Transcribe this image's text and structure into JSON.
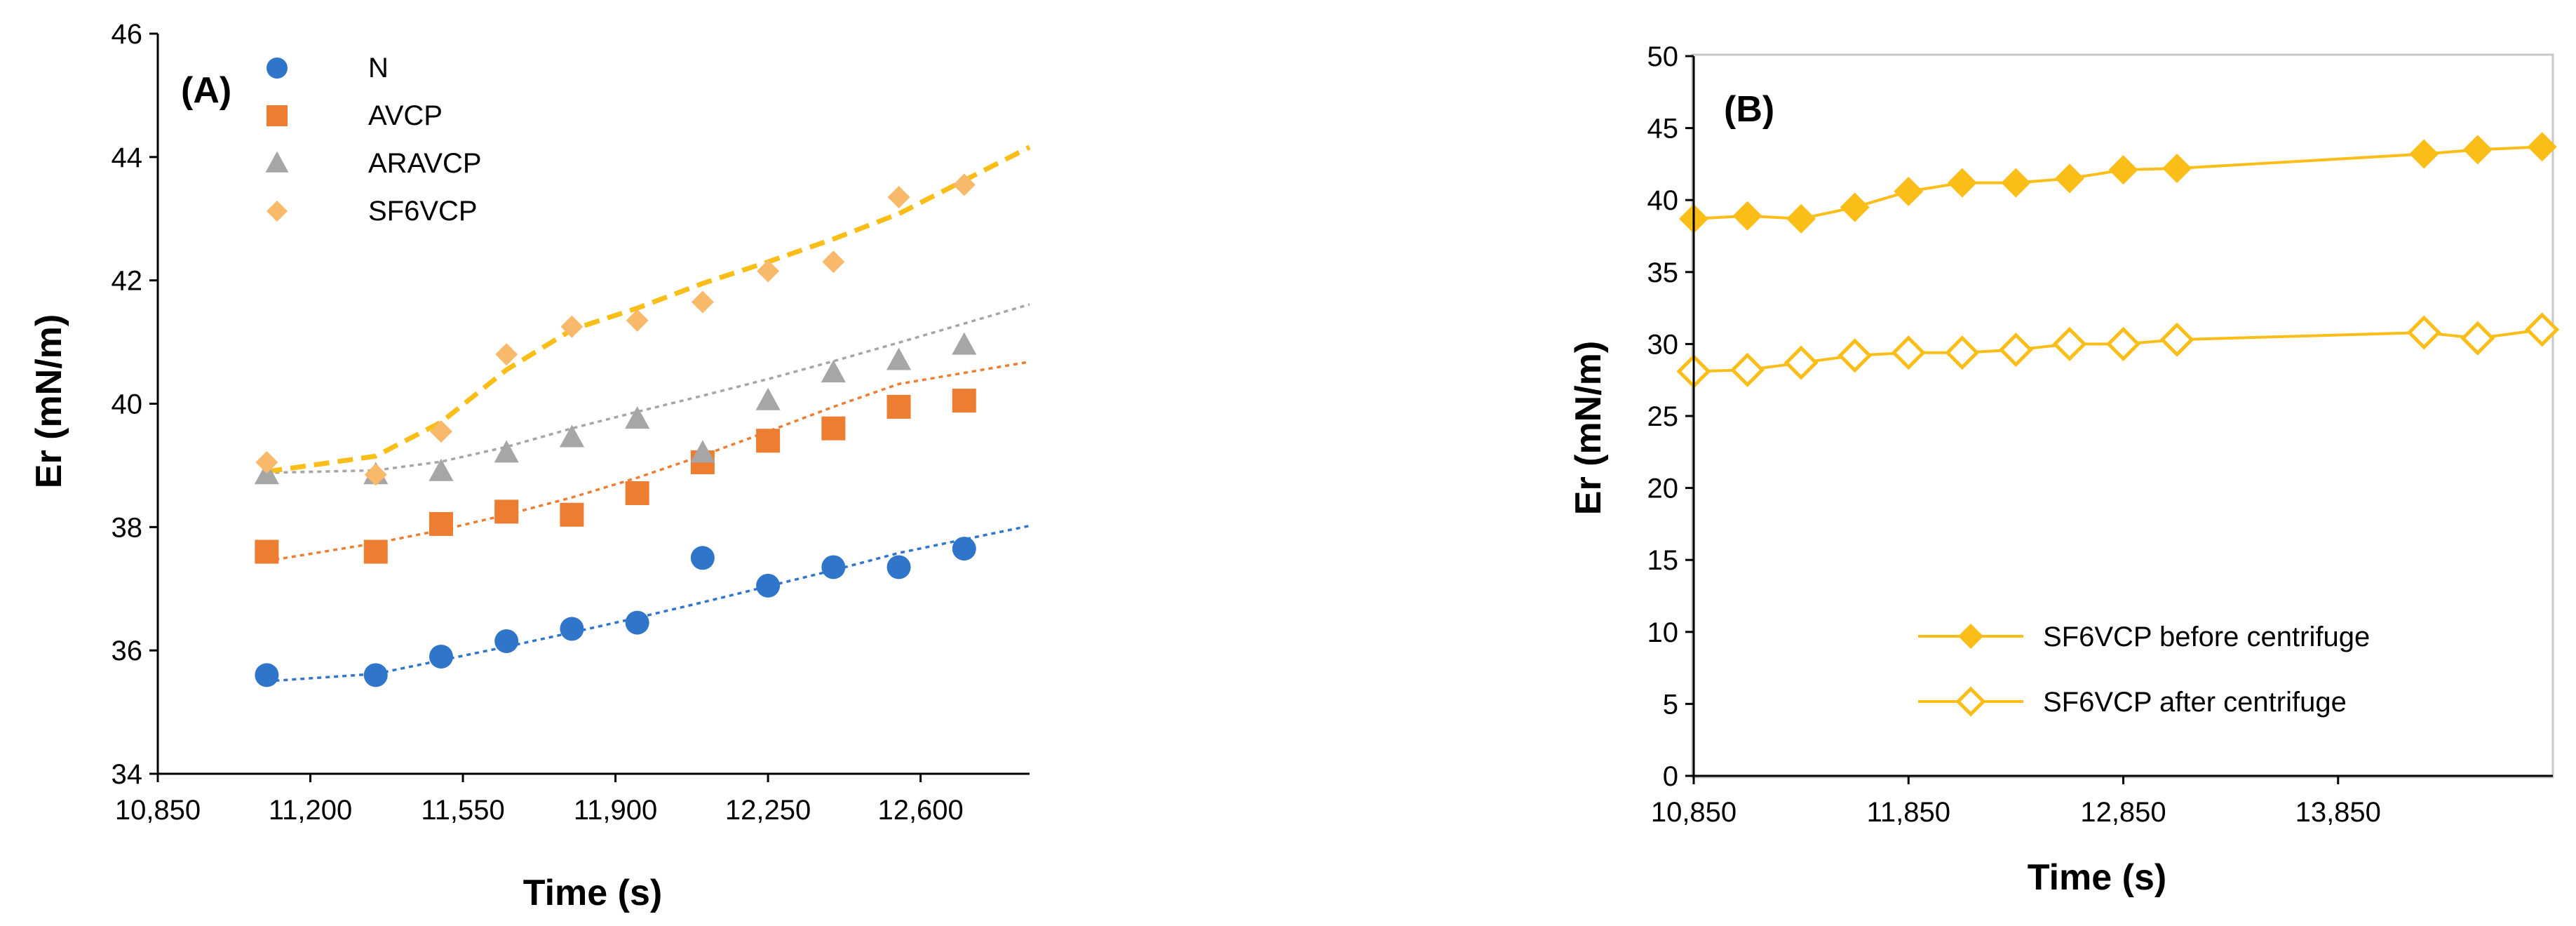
{
  "chart_data": [
    {
      "type": "scatter",
      "panel_label": "(A)",
      "xlabel": "Time (s)",
      "ylabel": "Er (mN/m)",
      "xlim": [
        10850,
        12850
      ],
      "ylim": [
        34,
        46
      ],
      "xticks": [
        10850,
        11200,
        11550,
        11900,
        12250,
        12600
      ],
      "xtick_labels": [
        "10,850",
        "11,200",
        "11,550",
        "11,900",
        "12,250",
        "12,600"
      ],
      "yticks": [
        34,
        36,
        38,
        40,
        42,
        44,
        46
      ],
      "ytick_labels": [
        "34",
        "36",
        "38",
        "40",
        "42",
        "44",
        "46"
      ],
      "grid": false,
      "legend_position": "top-left",
      "x": [
        11100,
        11350,
        11500,
        11650,
        11800,
        11950,
        12100,
        12250,
        12400,
        12550,
        12700
      ],
      "series": [
        {
          "name": "N",
          "marker": "circle",
          "color": "#2f75c9",
          "trend": "dotted",
          "values": [
            35.6,
            35.6,
            35.9,
            36.15,
            36.35,
            36.45,
            37.5,
            37.05,
            37.35,
            37.35,
            37.65
          ],
          "trend_values": [
            35.5,
            35.62,
            35.84,
            36.06,
            36.29,
            36.53,
            36.78,
            37.04,
            37.3,
            37.58,
            37.8
          ]
        },
        {
          "name": "AVCP",
          "marker": "square",
          "color": "#ed7d31",
          "trend": "dotted",
          "values": [
            37.6,
            37.6,
            38.05,
            38.25,
            38.2,
            38.55,
            39.05,
            39.4,
            39.6,
            39.95,
            40.05
          ],
          "trend_values": [
            37.45,
            37.74,
            37.95,
            38.2,
            38.48,
            38.8,
            39.16,
            39.55,
            39.95,
            40.32,
            40.5
          ]
        },
        {
          "name": "ARAVCP",
          "marker": "triangle",
          "color": "#a6a6a6",
          "trend": "dotted",
          "values": [
            38.85,
            38.85,
            38.9,
            39.2,
            39.45,
            39.75,
            39.2,
            40.05,
            40.5,
            40.7,
            40.95
          ],
          "trend_values": [
            38.88,
            38.92,
            39.06,
            39.3,
            39.6,
            39.87,
            40.13,
            40.4,
            40.69,
            40.99,
            41.3
          ]
        },
        {
          "name": "SF6VCP",
          "marker": "diamond",
          "color": "#f8b96b",
          "trend": "dashed",
          "trend_color": "#fbbd18",
          "values": [
            39.05,
            38.85,
            39.55,
            40.8,
            41.25,
            41.35,
            41.65,
            42.15,
            42.3,
            43.35,
            43.55
          ],
          "trend_values": [
            38.9,
            39.15,
            39.7,
            40.55,
            41.2,
            41.55,
            41.95,
            42.3,
            42.67,
            43.08,
            43.62
          ]
        }
      ]
    },
    {
      "type": "line",
      "panel_label": "(B)",
      "xlabel": "Time (s)",
      "ylabel": "Er (mN/m)",
      "xlim": [
        10850,
        14850
      ],
      "ylim": [
        0,
        50
      ],
      "xticks": [
        10850,
        11850,
        12850,
        13850
      ],
      "xtick_labels": [
        "10,850",
        "11,850",
        "12,850",
        "13,850"
      ],
      "yticks": [
        0,
        5,
        10,
        15,
        20,
        25,
        30,
        35,
        40,
        45,
        50
      ],
      "ytick_labels": [
        "0",
        "5",
        "10",
        "15",
        "20",
        "25",
        "30",
        "35",
        "40",
        "45",
        "50"
      ],
      "grid": false,
      "legend_position": "bottom-right",
      "x": [
        10850,
        11100,
        11350,
        11600,
        11850,
        12100,
        12350,
        12600,
        12850,
        13100,
        14250,
        14500,
        14800
      ],
      "series": [
        {
          "name": "SF6VCP before centrifuge",
          "marker": "diamond-filled",
          "color": "#fbbd18",
          "values": [
            38.7,
            38.9,
            38.7,
            39.5,
            40.6,
            41.2,
            41.2,
            41.5,
            42.1,
            42.2,
            43.2,
            43.5,
            43.7
          ]
        },
        {
          "name": "SF6VCP after centrifuge",
          "marker": "diamond-open",
          "color": "#fbbd18",
          "values": [
            28.1,
            28.2,
            28.7,
            29.2,
            29.4,
            29.4,
            29.6,
            30.0,
            30.0,
            30.3,
            30.8,
            30.4,
            31.0
          ]
        }
      ]
    }
  ]
}
